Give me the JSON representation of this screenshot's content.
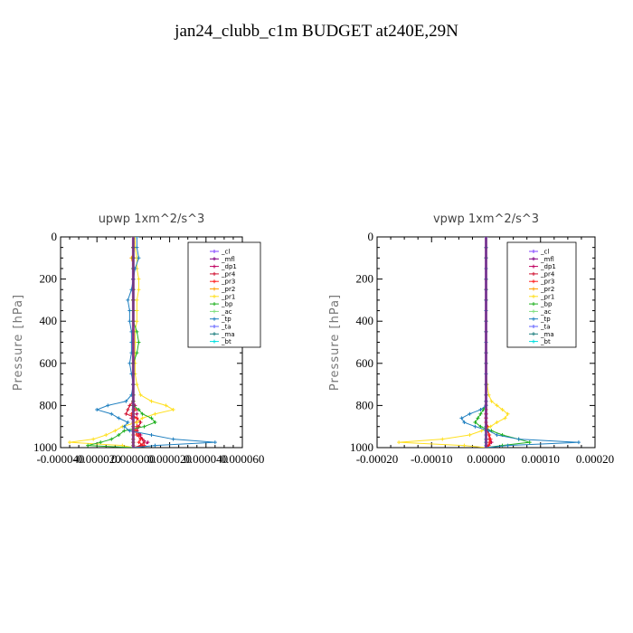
{
  "figure_title": "jan24_clubb_c1m  BUDGET at240E,29N",
  "chart_data": [
    {
      "type": "line",
      "title": "upwp   1xm^2/s^3",
      "xlabel": "",
      "ylabel": "Pressure [hPa]",
      "xlim": [
        -4e-05,
        6e-05
      ],
      "ylim": [
        1000,
        0
      ],
      "xticks": [
        "-0.000040",
        "-0.000020",
        "0.000000",
        "0.000020",
        "0.000040",
        "0.000060"
      ],
      "yticks": [
        "0",
        "200",
        "400",
        "600",
        "800",
        "1000"
      ],
      "legend_position": "top-right",
      "pressure": [
        50,
        100,
        150,
        200,
        250,
        300,
        350,
        400,
        450,
        500,
        550,
        600,
        650,
        700,
        750,
        780,
        800,
        820,
        840,
        860,
        880,
        900,
        920,
        940,
        960,
        975,
        990,
        1000
      ],
      "series": [
        {
          "name": "_cl",
          "color": "#8040ff",
          "values": [
            0,
            0,
            0,
            0,
            0,
            0,
            0,
            0,
            0,
            0,
            0,
            0,
            0,
            0,
            0,
            0,
            0,
            0,
            0,
            0,
            0,
            0,
            0,
            0,
            0,
            0,
            0,
            0
          ]
        },
        {
          "name": "_mfl",
          "color": "#800080",
          "values": [
            0,
            0,
            0,
            0,
            0,
            0,
            0,
            0,
            0,
            0,
            0,
            0,
            0,
            0,
            0,
            0,
            0,
            0,
            0,
            0,
            0,
            0,
            0,
            0,
            0,
            0,
            0,
            0
          ]
        },
        {
          "name": "_dp1",
          "color": "#c00060",
          "values": [
            0,
            0,
            0,
            0,
            0,
            0,
            0,
            0,
            0,
            0,
            0,
            0,
            0,
            0,
            0,
            0,
            1e-06,
            2e-06,
            2e-06,
            -1e-06,
            2e-06,
            3e-06,
            2e-06,
            4e-06,
            5e-06,
            8e-06,
            6e-06,
            0
          ]
        },
        {
          "name": "_pr4",
          "color": "#d01030",
          "values": [
            0,
            0,
            0,
            0,
            0,
            0,
            0,
            0,
            0,
            0,
            0,
            0,
            0,
            0,
            0,
            0,
            -2e-06,
            -3e-06,
            -4e-06,
            2e-06,
            4e-06,
            3e-06,
            2e-06,
            3e-06,
            5e-06,
            6e-06,
            4e-06,
            0
          ]
        },
        {
          "name": "_pr3",
          "color": "#ff2020",
          "values": [
            0,
            0,
            0,
            0,
            0,
            0,
            0,
            0,
            0,
            0,
            0,
            0,
            0,
            0,
            0,
            0,
            0,
            1e-06,
            -1e-06,
            2e-06,
            2e-06,
            2e-06,
            1e-06,
            2e-06,
            4e-06,
            3e-06,
            6e-06,
            0
          ]
        },
        {
          "name": "_pr2",
          "color": "#ffa000",
          "values": [
            1e-06,
            -1e-06,
            0,
            0,
            0,
            0,
            0,
            0,
            0,
            0,
            0,
            0,
            0,
            0,
            0,
            0,
            0,
            0,
            0,
            0,
            0,
            0,
            0,
            0,
            0,
            0,
            0,
            0
          ]
        },
        {
          "name": "_pr1",
          "color": "#ffe020",
          "values": [
            1e-06,
            2e-06,
            2e-06,
            3e-06,
            3e-06,
            2e-06,
            2e-06,
            2e-06,
            1e-06,
            1e-06,
            1e-06,
            1e-06,
            1e-06,
            2e-06,
            4e-06,
            1e-05,
            1.8e-05,
            2.2e-05,
            1.2e-05,
            5e-06,
            2e-06,
            -6e-06,
            -1e-05,
            -1.5e-05,
            -2.2e-05,
            -3.5e-05,
            -6e-06,
            0
          ]
        },
        {
          "name": "_bp",
          "color": "#20b020",
          "values": [
            0,
            0,
            0,
            0,
            0,
            0,
            0,
            0,
            2e-06,
            3e-06,
            2e-06,
            0,
            0,
            0,
            0,
            0,
            0,
            3e-06,
            5e-06,
            1e-05,
            1.2e-05,
            6e-06,
            -5e-06,
            -8e-06,
            -1.2e-05,
            -1.8e-05,
            -2.5e-05,
            0
          ]
        },
        {
          "name": "_ac",
          "color": "#80e080",
          "values": [
            0,
            0,
            0,
            0,
            0,
            0,
            0,
            0,
            0,
            0,
            0,
            0,
            0,
            0,
            0,
            0,
            0,
            0,
            0,
            0,
            0,
            0,
            0,
            0,
            0,
            0,
            0,
            0
          ]
        },
        {
          "name": "_tp",
          "color": "#2080c0",
          "values": [
            2e-06,
            3e-06,
            1e-06,
            0,
            -1e-06,
            -3e-06,
            -2e-06,
            -2e-06,
            -1e-06,
            -1e-06,
            -1e-06,
            -2e-06,
            -1e-06,
            0,
            -1e-06,
            -4e-06,
            -1.4e-05,
            -2e-05,
            -1.2e-05,
            -8e-06,
            -3e-06,
            -5e-06,
            -2e-06,
            1e-05,
            2.2e-05,
            4.5e-05,
            1.2e-05,
            0
          ]
        },
        {
          "name": "_ta",
          "color": "#6060ff",
          "values": [
            0,
            0,
            0,
            0,
            0,
            0,
            0,
            0,
            0,
            0,
            0,
            0,
            0,
            0,
            0,
            0,
            0,
            0,
            0,
            0,
            0,
            0,
            0,
            0,
            0,
            0,
            0,
            0
          ]
        },
        {
          "name": "_ma",
          "color": "#208080",
          "values": [
            0,
            0,
            0,
            0,
            0,
            0,
            0,
            0,
            0,
            0,
            0,
            0,
            0,
            0,
            0,
            0,
            0,
            0,
            0,
            0,
            0,
            0,
            0,
            0,
            0,
            0,
            0,
            0
          ]
        },
        {
          "name": "_bt",
          "color": "#00e0e0",
          "values": [
            0,
            0,
            0,
            0,
            0,
            0,
            0,
            0,
            0,
            0,
            0,
            0,
            0,
            0,
            0,
            0,
            0,
            0,
            0,
            0,
            0,
            0,
            0,
            0,
            0,
            0,
            0,
            0
          ]
        }
      ]
    },
    {
      "type": "line",
      "title": "vpwp   1xm^2/s^3",
      "xlabel": "",
      "ylabel": "Pressure [hPa]",
      "xlim": [
        -0.0002,
        0.0002
      ],
      "ylim": [
        1000,
        0
      ],
      "xticks": [
        "-0.00020",
        "-0.00010",
        "0.00000",
        "0.00010",
        "0.00020"
      ],
      "yticks": [
        "0",
        "200",
        "400",
        "600",
        "800",
        "1000"
      ],
      "legend_position": "top-right",
      "pressure": [
        50,
        100,
        150,
        200,
        250,
        300,
        350,
        400,
        450,
        500,
        550,
        600,
        650,
        700,
        750,
        780,
        800,
        820,
        840,
        860,
        880,
        900,
        920,
        940,
        960,
        975,
        990,
        1000
      ],
      "series": [
        {
          "name": "_cl",
          "color": "#8040ff",
          "values": [
            0,
            0,
            0,
            0,
            0,
            0,
            0,
            0,
            0,
            0,
            0,
            0,
            0,
            0,
            0,
            0,
            0,
            0,
            0,
            0,
            0,
            0,
            0,
            0,
            0,
            0,
            0,
            0
          ]
        },
        {
          "name": "_mfl",
          "color": "#800080",
          "values": [
            0,
            0,
            0,
            0,
            0,
            0,
            0,
            0,
            0,
            0,
            0,
            0,
            0,
            0,
            0,
            0,
            0,
            0,
            0,
            0,
            0,
            0,
            0,
            0,
            0,
            0,
            0,
            0
          ]
        },
        {
          "name": "_dp1",
          "color": "#c00060",
          "values": [
            0,
            0,
            0,
            0,
            0,
            0,
            0,
            0,
            0,
            0,
            0,
            0,
            0,
            0,
            0,
            0,
            0,
            0,
            0,
            0,
            0,
            2e-06,
            4e-06,
            6e-06,
            8e-06,
            1e-05,
            5e-06,
            0
          ]
        },
        {
          "name": "_pr4",
          "color": "#d01030",
          "values": [
            0,
            0,
            0,
            0,
            0,
            0,
            0,
            0,
            0,
            0,
            0,
            0,
            0,
            0,
            0,
            0,
            0,
            0,
            0,
            0,
            0,
            2e-06,
            3e-06,
            5e-06,
            6e-06,
            8e-06,
            4e-06,
            0
          ]
        },
        {
          "name": "_pr3",
          "color": "#ff2020",
          "values": [
            0,
            0,
            0,
            0,
            0,
            0,
            0,
            0,
            0,
            0,
            0,
            0,
            0,
            0,
            0,
            0,
            0,
            0,
            0,
            0,
            0,
            3e-06,
            4e-06,
            6e-06,
            8e-06,
            6e-06,
            5e-06,
            0
          ]
        },
        {
          "name": "_pr2",
          "color": "#ffa000",
          "values": [
            0,
            0,
            0,
            0,
            0,
            0,
            0,
            0,
            0,
            0,
            0,
            0,
            0,
            0,
            0,
            0,
            0,
            0,
            0,
            0,
            0,
            0,
            0,
            0,
            0,
            0,
            0,
            0
          ]
        },
        {
          "name": "_pr1",
          "color": "#ffe020",
          "values": [
            0,
            0,
            0,
            0,
            0,
            0,
            0,
            0,
            0,
            0,
            0,
            0,
            0,
            2e-06,
            5e-06,
            1e-05,
            2e-05,
            3e-05,
            4e-05,
            3.5e-05,
            2e-05,
            8e-06,
            -8e-06,
            -3e-05,
            -8e-05,
            -0.00016,
            -4e-05,
            0
          ]
        },
        {
          "name": "_bp",
          "color": "#20b020",
          "values": [
            0,
            0,
            0,
            0,
            0,
            0,
            0,
            0,
            0,
            0,
            0,
            0,
            0,
            0,
            0,
            0,
            0,
            -5e-06,
            -1e-05,
            -1.5e-05,
            -2e-05,
            -1e-05,
            1e-05,
            3e-05,
            6e-05,
            8e-05,
            3e-05,
            0
          ]
        },
        {
          "name": "_ac",
          "color": "#80e080",
          "values": [
            0,
            0,
            0,
            0,
            0,
            0,
            0,
            0,
            0,
            0,
            0,
            0,
            0,
            0,
            0,
            0,
            0,
            0,
            0,
            0,
            0,
            0,
            0,
            0,
            0,
            0,
            0,
            0
          ]
        },
        {
          "name": "_tp",
          "color": "#2080c0",
          "values": [
            0,
            0,
            0,
            0,
            0,
            0,
            0,
            0,
            0,
            0,
            0,
            0,
            0,
            0,
            0,
            0,
            0,
            -1e-05,
            -3e-05,
            -4.5e-05,
            -4e-05,
            -2e-05,
            5e-06,
            2e-05,
            6e-05,
            0.00017,
            4e-05,
            0
          ]
        },
        {
          "name": "_ta",
          "color": "#6060ff",
          "values": [
            0,
            0,
            0,
            0,
            0,
            0,
            0,
            0,
            0,
            0,
            0,
            0,
            0,
            0,
            0,
            0,
            0,
            0,
            0,
            0,
            0,
            0,
            0,
            0,
            0,
            0,
            0,
            0
          ]
        },
        {
          "name": "_ma",
          "color": "#208080",
          "values": [
            0,
            0,
            0,
            0,
            0,
            0,
            0,
            0,
            0,
            0,
            0,
            0,
            0,
            0,
            0,
            0,
            0,
            0,
            0,
            0,
            0,
            0,
            0,
            0,
            0,
            0,
            0,
            0
          ]
        },
        {
          "name": "_bt",
          "color": "#00e0e0",
          "values": [
            0,
            0,
            0,
            0,
            0,
            0,
            0,
            0,
            0,
            0,
            0,
            0,
            0,
            0,
            0,
            0,
            0,
            0,
            0,
            0,
            0,
            0,
            0,
            0,
            0,
            0,
            0,
            0
          ]
        }
      ]
    }
  ]
}
